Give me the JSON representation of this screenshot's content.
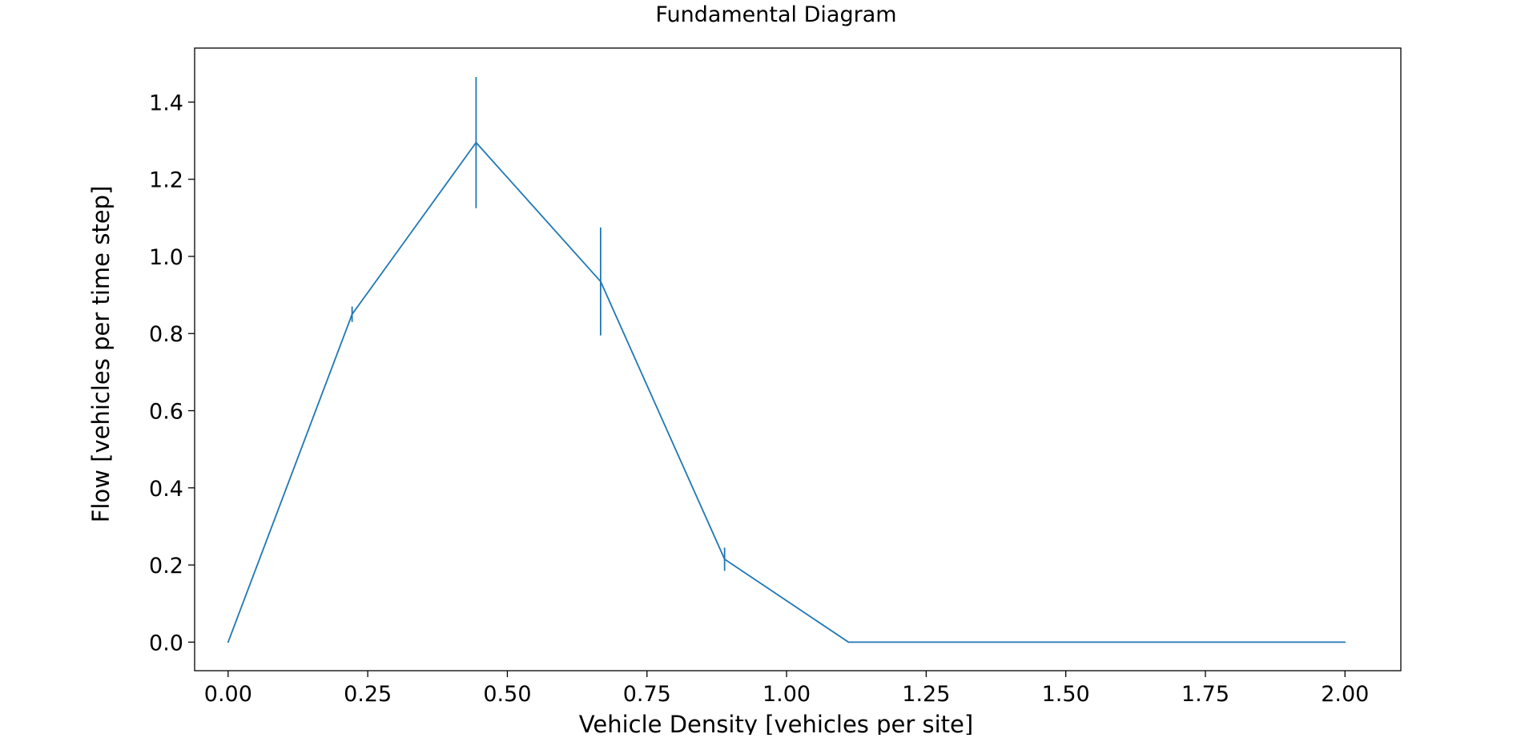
{
  "chart_data": {
    "type": "line",
    "title": "Fundamental Diagram",
    "xlabel": "Vehicle Density [vehicles per site]",
    "ylabel": "Flow [vehicles per time step]",
    "xlim": [
      -0.06,
      2.1
    ],
    "ylim": [
      -0.074,
      1.54
    ],
    "grid": false,
    "legend": "none",
    "x_ticks": [
      {
        "value": 0.0,
        "label": "0.00"
      },
      {
        "value": 0.25,
        "label": "0.25"
      },
      {
        "value": 0.5,
        "label": "0.50"
      },
      {
        "value": 0.75,
        "label": "0.75"
      },
      {
        "value": 1.0,
        "label": "1.00"
      },
      {
        "value": 1.25,
        "label": "1.25"
      },
      {
        "value": 1.5,
        "label": "1.50"
      },
      {
        "value": 1.75,
        "label": "1.75"
      },
      {
        "value": 2.0,
        "label": "2.00"
      }
    ],
    "y_ticks": [
      {
        "value": 0.0,
        "label": "0.0"
      },
      {
        "value": 0.2,
        "label": "0.2"
      },
      {
        "value": 0.4,
        "label": "0.4"
      },
      {
        "value": 0.6,
        "label": "0.6"
      },
      {
        "value": 0.8,
        "label": "0.8"
      },
      {
        "value": 1.0,
        "label": "1.0"
      },
      {
        "value": 1.2,
        "label": "1.2"
      },
      {
        "value": 1.4,
        "label": "1.4"
      }
    ],
    "series": [
      {
        "name": "flow",
        "color": "#1f77b4",
        "x": [
          0.0,
          0.222,
          0.444,
          0.667,
          0.889,
          1.111,
          2.0
        ],
        "y": [
          0.0,
          0.85,
          1.295,
          0.935,
          0.215,
          0.0,
          0.0
        ],
        "yerr": [
          0.0,
          0.02,
          0.17,
          0.14,
          0.03,
          0.0,
          0.0
        ]
      }
    ]
  }
}
